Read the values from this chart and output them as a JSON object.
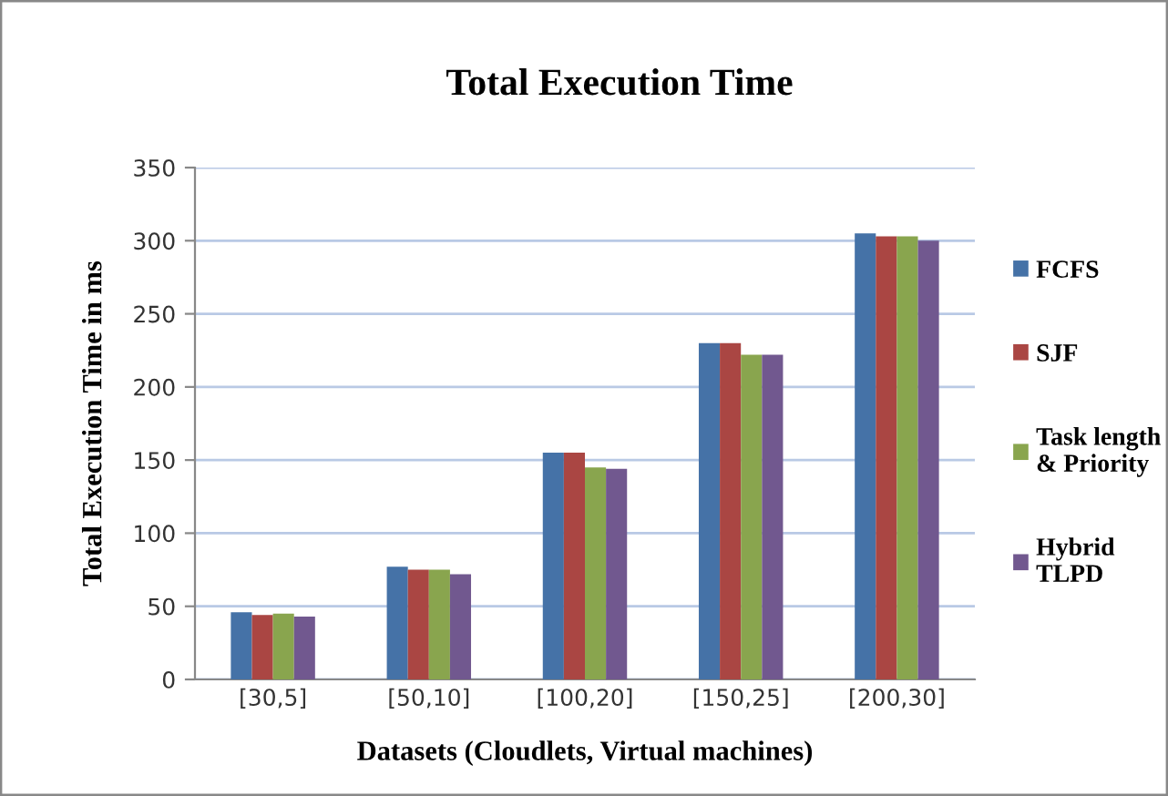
{
  "chart_data": {
    "type": "bar",
    "title": "Total Execution Time",
    "xlabel": "Datasets (Cloudlets, Virtual machines)",
    "ylabel": "Total Execution Time in ms",
    "categories": [
      "[30,5]",
      "[50,10]",
      "[100,20]",
      "[150,25]",
      "[200,30]"
    ],
    "series": [
      {
        "name": "FCFS",
        "color": "#4572a7",
        "values": [
          46,
          77,
          155,
          230,
          305
        ]
      },
      {
        "name": "SJF",
        "color": "#aa4643",
        "values": [
          44,
          75,
          155,
          230,
          303
        ]
      },
      {
        "name": "Task length\n& Priority",
        "color": "#89a54e",
        "values": [
          45,
          75,
          145,
          222,
          303
        ]
      },
      {
        "name": "Hybrid\nTLPD",
        "color": "#71588f",
        "values": [
          43,
          72,
          144,
          222,
          300
        ]
      }
    ],
    "ylim": [
      0,
      350
    ],
    "yticks": [
      0,
      50,
      100,
      150,
      200,
      250,
      300,
      350
    ],
    "grid": "y",
    "legend": "right"
  }
}
